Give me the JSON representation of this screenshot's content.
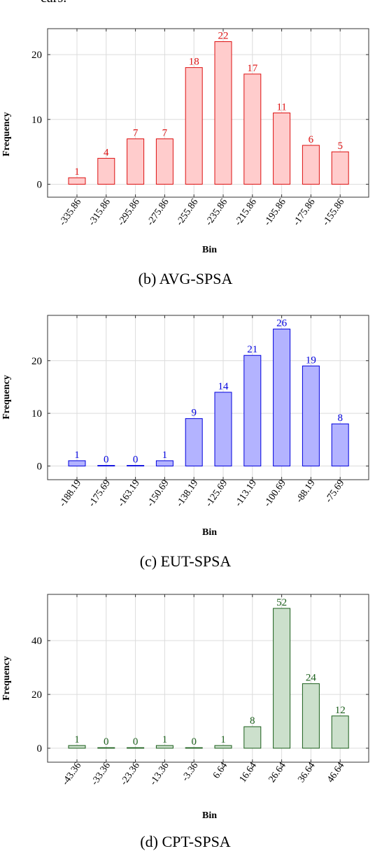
{
  "page": {
    "top_fragment": "cars."
  },
  "captions": [
    "(b) AVG-SPSA",
    "(c) EUT-SPSA",
    "(d) CPT-SPSA"
  ],
  "chart_data": [
    {
      "type": "bar",
      "xlabel": "Bin",
      "ylabel": "Frequency",
      "categories": [
        "-335.86",
        "-315.86",
        "-295.86",
        "-275.86",
        "-255.86",
        "-235.86",
        "-215.86",
        "-195.86",
        "-175.86",
        "-155.86"
      ],
      "values": [
        1,
        4,
        7,
        7,
        18,
        22,
        17,
        11,
        6,
        5
      ],
      "yticks": [
        0,
        10,
        20
      ],
      "ylim": [
        -2,
        24
      ],
      "grid": true,
      "colors": {
        "fill": "#ffcccc",
        "stroke": "#dd1111",
        "label": "#dd1111"
      }
    },
    {
      "type": "bar",
      "xlabel": "Bin",
      "ylabel": "Frequency",
      "categories": [
        "-188.19",
        "-175.69",
        "-163.19",
        "-150.69",
        "-138.19",
        "-125.69",
        "-113.19",
        "-100.69",
        "-88.19",
        "-75.69"
      ],
      "values": [
        1,
        0,
        0,
        1,
        9,
        14,
        21,
        26,
        19,
        8
      ],
      "yticks": [
        0,
        10,
        20
      ],
      "ylim": [
        -2.6,
        28.6
      ],
      "grid": true,
      "colors": {
        "fill": "#b3b3ff",
        "stroke": "#0000dd",
        "label": "#0000dd"
      }
    },
    {
      "type": "bar",
      "xlabel": "Bin",
      "ylabel": "Frequency",
      "categories": [
        "-43.36",
        "-33.36",
        "-23.36",
        "-13.36",
        "-3.36",
        "6.64",
        "16.64",
        "26.64",
        "36.64",
        "46.64"
      ],
      "values": [
        1,
        0,
        0,
        1,
        0,
        1,
        8,
        52,
        24,
        12
      ],
      "yticks": [
        0,
        20,
        40
      ],
      "ylim": [
        -5.2,
        57.2
      ],
      "grid": true,
      "colors": {
        "fill": "#cce0cc",
        "stroke": "#1a5e1a",
        "label": "#1a5e1a"
      }
    }
  ]
}
